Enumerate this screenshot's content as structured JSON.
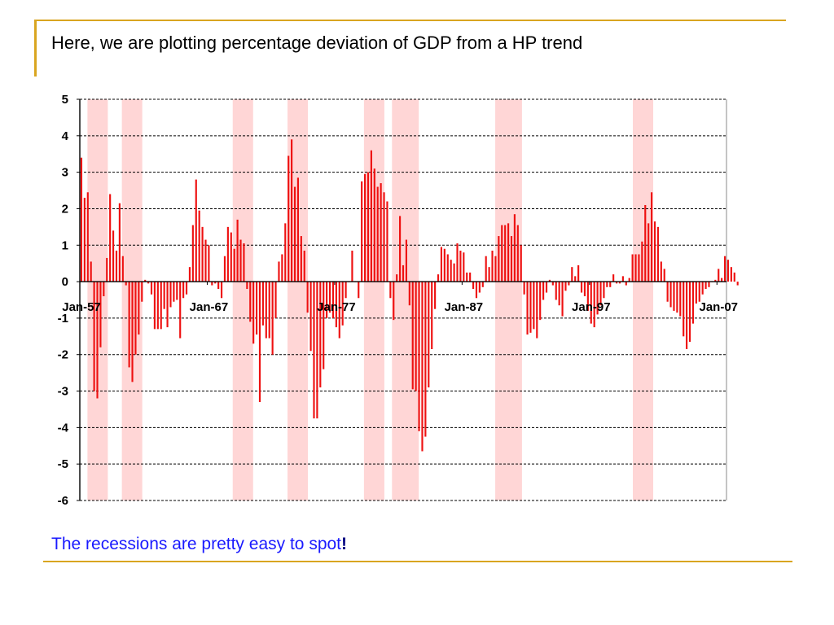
{
  "slide": {
    "title": "Here, we are plotting percentage deviation of GDP from a HP trend",
    "caption": "The recessions are pretty easy to spot",
    "caption_emphasis": "!"
  },
  "colors": {
    "accent_rule": "#d9a520",
    "bars": "#ee1111",
    "recession_band": "#ffd6d6",
    "caption": "#1a1aff"
  },
  "chart_data": {
    "type": "bar",
    "title": "",
    "xlabel": "",
    "ylabel": "",
    "ylim": [
      -6,
      5
    ],
    "yticks": [
      5,
      4,
      3,
      2,
      1,
      0,
      -1,
      -2,
      -3,
      -4,
      -5,
      -6
    ],
    "xlim": [
      1957.0,
      2007.75
    ],
    "xticks": [
      {
        "label": "Jan-57",
        "x": 1957.0
      },
      {
        "label": "Jan-67",
        "x": 1967.0
      },
      {
        "label": "Jan-77",
        "x": 1977.0
      },
      {
        "label": "Jan-87",
        "x": 1987.0
      },
      {
        "label": "Jan-97",
        "x": 1997.0
      },
      {
        "label": "Jan-07",
        "x": 2007.0
      }
    ],
    "grid": {
      "horizontal": true,
      "style": "dashed"
    },
    "recessions": [
      [
        1957.6,
        1959.2
      ],
      [
        1960.3,
        1961.9
      ],
      [
        1969.0,
        1970.6
      ],
      [
        1973.3,
        1974.9
      ],
      [
        1979.3,
        1980.9
      ],
      [
        1981.5,
        1983.6
      ],
      [
        1989.6,
        1991.7
      ],
      [
        2000.4,
        2002.0
      ]
    ],
    "series": [
      {
        "start": 1957.0,
        "step": 0.25,
        "values": [
          3.4,
          2.3,
          2.45,
          0.55,
          -3.0,
          -3.2,
          -1.8,
          -0.4,
          0.65,
          2.4,
          1.4,
          0.85,
          2.15,
          0.7,
          -0.1,
          -2.35,
          -2.75,
          -2.0,
          -1.45,
          -0.55,
          0.05,
          -0.05,
          -0.35,
          -1.3,
          -1.3,
          -1.3,
          -0.75,
          -1.25,
          -0.7,
          -0.55,
          -0.5,
          -1.55,
          -0.45,
          -0.35,
          0.4,
          1.55,
          2.8,
          1.95,
          1.5,
          1.15,
          1.0,
          -0.1,
          -0.05,
          -0.2,
          -0.45,
          0.7,
          1.5,
          1.35,
          0.9,
          1.7,
          1.15,
          1.05,
          -0.2,
          -1.1,
          -1.7,
          -1.45,
          -3.3,
          -1.2,
          -1.55,
          -1.55,
          -2.0,
          -1.0,
          0.55,
          0.75,
          1.6,
          3.45,
          3.9,
          2.6,
          2.85,
          1.25,
          0.85,
          -0.85,
          -1.9,
          -3.75,
          -3.75,
          -2.9,
          -2.4,
          -1.0,
          -0.85,
          -1.0,
          -1.25,
          -1.55,
          -1.2,
          -0.45,
          0.0,
          0.85,
          0.0,
          -0.45,
          2.75,
          2.95,
          3.0,
          3.6,
          3.1,
          2.6,
          2.7,
          2.45,
          2.2,
          -0.45,
          -1.05,
          0.2,
          1.8,
          0.45,
          1.15,
          -0.65,
          -2.95,
          -3.0,
          -4.1,
          -4.65,
          -4.25,
          -2.9,
          -1.85,
          -0.75,
          0.2,
          0.95,
          0.9,
          0.75,
          0.6,
          0.5,
          1.05,
          0.85,
          0.8,
          0.25,
          0.25,
          -0.2,
          -0.45,
          -0.3,
          -0.15,
          0.7,
          0.4,
          0.85,
          0.7,
          1.25,
          1.55,
          1.55,
          1.6,
          1.25,
          1.85,
          1.55,
          1.0,
          -0.35,
          -1.45,
          -1.4,
          -1.3,
          -1.55,
          -1.05,
          -0.5,
          -0.3,
          0.05,
          -0.1,
          -0.5,
          -0.65,
          -0.95,
          -0.25,
          -0.1,
          0.4,
          0.15,
          0.45,
          -0.3,
          -0.4,
          -0.8,
          -1.15,
          -1.25,
          -0.9,
          -0.65,
          -0.45,
          -0.15,
          -0.15,
          0.2,
          -0.05,
          -0.05,
          0.15,
          -0.1,
          0.1,
          0.75,
          0.75,
          0.75,
          1.1,
          2.1,
          1.6,
          2.45,
          1.65,
          1.5,
          0.55,
          0.35,
          -0.55,
          -0.7,
          -0.8,
          -0.85,
          -0.95,
          -1.5,
          -1.85,
          -1.65,
          -1.15,
          -0.6,
          -0.55,
          -0.35,
          -0.2,
          -0.15,
          0.0,
          0.05,
          0.35,
          0.1,
          0.7,
          0.6,
          0.4,
          0.25,
          -0.1
        ]
      }
    ]
  }
}
